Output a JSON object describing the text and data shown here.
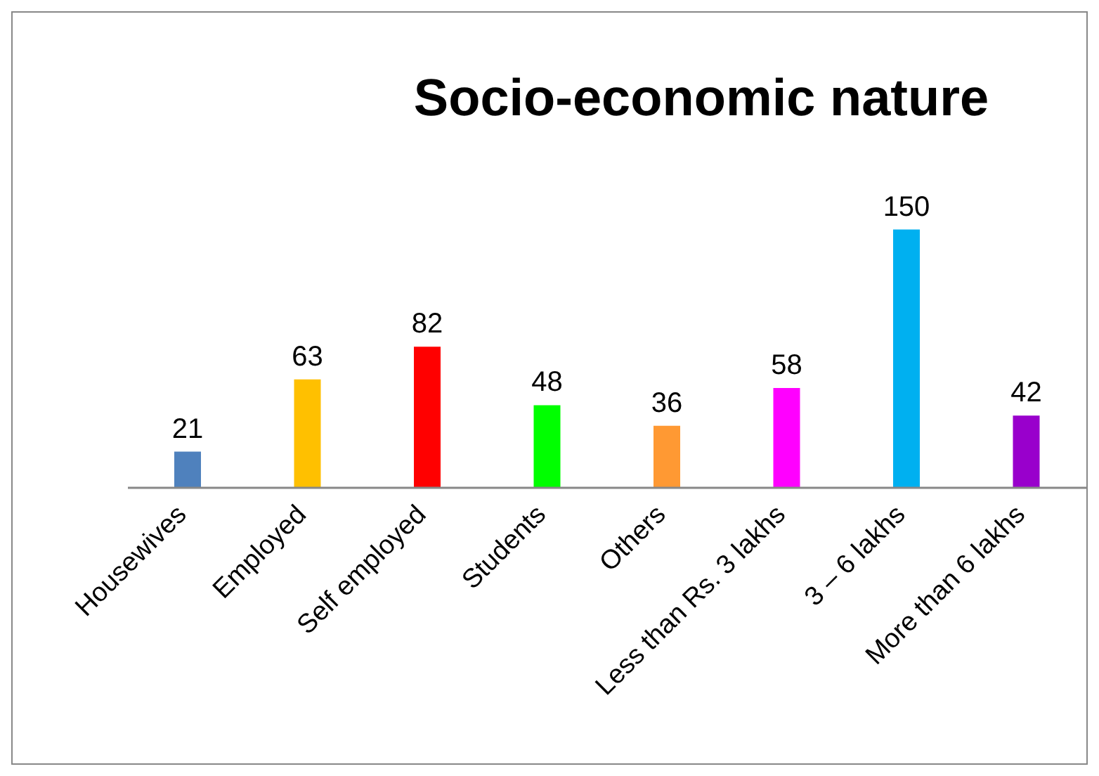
{
  "chart_data": {
    "type": "bar",
    "title": "Socio-economic nature",
    "categories": [
      "Housewives",
      "Employed",
      "Self employed",
      "Students",
      "Others",
      "Less than Rs. 3 lakhs",
      "3 – 6 lakhs",
      "More than 6 lakhs"
    ],
    "values": [
      21,
      63,
      82,
      48,
      36,
      58,
      150,
      42
    ],
    "colors": [
      "#4f81bd",
      "#ffc000",
      "#ff0000",
      "#00ff00",
      "#ff9933",
      "#ff00ff",
      "#00b0f0",
      "#9900cc"
    ],
    "data_labels": true,
    "grid": false,
    "legend": false
  }
}
